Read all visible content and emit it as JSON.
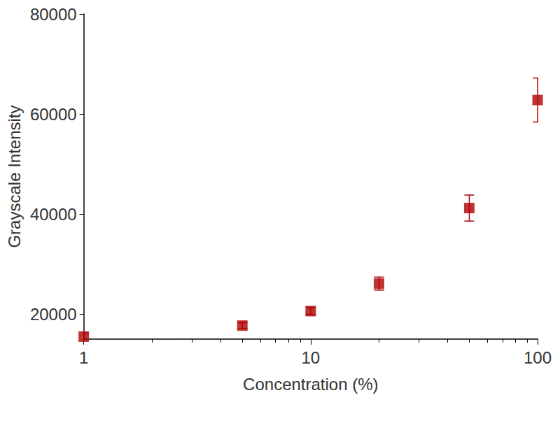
{
  "chart_data": {
    "type": "scatter",
    "x_label": "Concentration (%)",
    "y_label": "Grayscale Intensity",
    "x": [
      1,
      5,
      10,
      20,
      50,
      100
    ],
    "values": [
      15500,
      17700,
      20600,
      26100,
      41200,
      62800
    ],
    "errors": [
      700,
      600,
      700,
      1300,
      2600,
      4400
    ],
    "color": "#b00000",
    "marker": "square",
    "log": "x",
    "xlim": [
      1,
      100
    ],
    "xticks": [
      1,
      10,
      100
    ],
    "ylim": [
      15000,
      80000
    ],
    "yticks": [
      20000,
      40000,
      60000,
      80000
    ],
    "grid": false
  }
}
